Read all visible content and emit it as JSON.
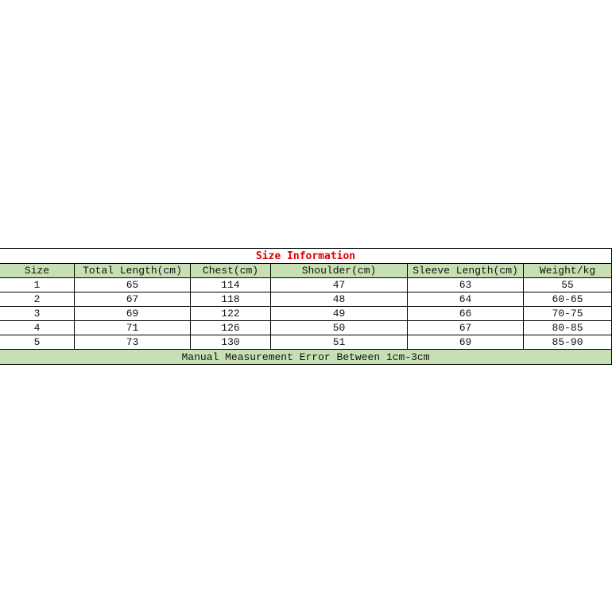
{
  "title": "Size Information",
  "headers": [
    "Size",
    "Total Length(cm)",
    "Chest(cm)",
    "Shoulder(cm)",
    "Sleeve Length(cm)",
    "Weight/kg"
  ],
  "rows": [
    [
      "1",
      "65",
      "114",
      "47",
      "63",
      "55"
    ],
    [
      "2",
      "67",
      "118",
      "48",
      "64",
      "60-65"
    ],
    [
      "3",
      "69",
      "122",
      "49",
      "66",
      "70-75"
    ],
    [
      "4",
      "71",
      "126",
      "50",
      "67",
      "80-85"
    ],
    [
      "5",
      "73",
      "130",
      "51",
      "69",
      "85-90"
    ]
  ],
  "footer": "Manual Measurement Error Between 1cm-3cm",
  "colors": {
    "header_bg": "#c6e0b4",
    "title": "#e00000"
  }
}
